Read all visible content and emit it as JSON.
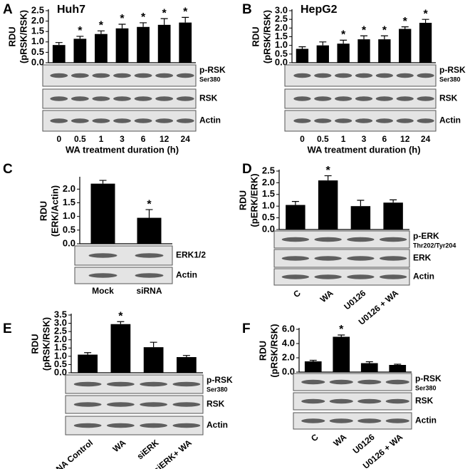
{
  "chart_data": [
    {
      "type": "bar",
      "panel": "A",
      "title": "Huh7",
      "ylabel": [
        "RDU",
        "(pRSK/RSK)"
      ],
      "xlabel": "WA treatment duration (h)",
      "categories": [
        "0",
        "0.5",
        "1",
        "3",
        "6",
        "12",
        "24"
      ],
      "values": [
        0.85,
        1.15,
        1.38,
        1.65,
        1.72,
        1.82,
        1.93
      ],
      "errors": [
        0.12,
        0.12,
        0.15,
        0.2,
        0.2,
        0.3,
        0.25
      ],
      "significance": [
        null,
        "*",
        "*",
        "*",
        "*",
        "*",
        "*"
      ],
      "color": "#000000",
      "ylim": [
        0,
        2.5
      ],
      "yticks": [
        {
          "value": 0,
          "label": "0.0"
        },
        0.5,
        {
          "value": 1,
          "label": "1.0"
        },
        1.5,
        {
          "value": 2,
          "label": "2.0"
        },
        2.5
      ],
      "blots": [
        {
          "label": "p-RSK",
          "sublabel": "Ser380"
        },
        {
          "label": "RSK"
        },
        {
          "label": "Actin"
        }
      ]
    },
    {
      "type": "bar",
      "panel": "B",
      "title": "HepG2",
      "ylabel": [
        "RDU",
        "(pRSK/RSK)"
      ],
      "xlabel": "WA treatment duration (h)",
      "categories": [
        "0",
        "0.5",
        "1",
        "3",
        "6",
        "12",
        "24"
      ],
      "values": [
        0.8,
        1.0,
        1.1,
        1.35,
        1.35,
        1.95,
        2.3
      ],
      "errors": [
        0.12,
        0.2,
        0.2,
        0.2,
        0.2,
        0.12,
        0.2
      ],
      "significance": [
        null,
        null,
        "*",
        "*",
        "*",
        "*",
        "*"
      ],
      "color": "#000000",
      "ylim": [
        0,
        3
      ],
      "yticks": [
        {
          "value": 0,
          "label": "0.0"
        },
        0.5,
        {
          "value": 1,
          "label": "1.0"
        },
        1.5,
        {
          "value": 2,
          "label": "2.0"
        },
        2.5,
        {
          "value": 3,
          "label": "3.0"
        }
      ],
      "blots": [
        {
          "label": "p-RSK",
          "sublabel": "Ser380"
        },
        {
          "label": "RSK"
        },
        {
          "label": "Actin"
        }
      ]
    },
    {
      "type": "bar",
      "panel": "C",
      "ylabel": [
        "RDU",
        "(ERK/Actin)"
      ],
      "categories": [
        "Mock",
        "siRNA"
      ],
      "values": [
        2.2,
        0.95
      ],
      "errors": [
        0.12,
        0.3
      ],
      "significance": [
        null,
        "*"
      ],
      "color": "#000000",
      "ylim": [
        0,
        2.4
      ],
      "yticks": [
        {
          "value": 0,
          "label": "0.0"
        },
        0.5,
        {
          "value": 1,
          "label": "1.0"
        },
        1.5,
        {
          "value": 2,
          "label": "2.0"
        }
      ],
      "blots": [
        {
          "label": "ERK1/2"
        },
        {
          "label": "Actin"
        }
      ]
    },
    {
      "type": "bar",
      "panel": "D",
      "ylabel": [
        "RDU",
        "(pERK/ERK)"
      ],
      "categories": [
        "C",
        "WA",
        "U0126",
        "U0126 + WA"
      ],
      "values": [
        1.05,
        2.1,
        1.0,
        1.15
      ],
      "errors": [
        0.15,
        0.2,
        0.25,
        0.12
      ],
      "significance": [
        null,
        "*",
        null,
        null
      ],
      "color": "#000000",
      "ylim": [
        0,
        2.5
      ],
      "yticks": [
        {
          "value": 0,
          "label": "0.0"
        },
        0.5,
        {
          "value": 1,
          "label": "1.0"
        },
        1.5,
        {
          "value": 2,
          "label": "2.0"
        },
        2.5
      ],
      "blots": [
        {
          "label": "p-ERK",
          "sublabel": "Thr202/Tyr204"
        },
        {
          "label": "ERK"
        },
        {
          "label": "Actin"
        }
      ]
    },
    {
      "type": "bar",
      "panel": "E",
      "ylabel": [
        "RDU",
        "(pRSK/RSK)"
      ],
      "categories": [
        "siRNA Control",
        "WA",
        "siERK",
        "siERK+ WA"
      ],
      "values": [
        1.1,
        2.95,
        1.55,
        0.95
      ],
      "errors": [
        0.12,
        0.15,
        0.3,
        0.1
      ],
      "significance": [
        null,
        "*",
        null,
        null
      ],
      "color": "#000000",
      "ylim": [
        0,
        3.5
      ],
      "yticks": [
        {
          "value": 0,
          "label": "0.0"
        },
        0.5,
        {
          "value": 1,
          "label": "1.0"
        },
        1.5,
        {
          "value": 2,
          "label": "2.0"
        },
        2.5,
        {
          "value": 3,
          "label": "3.0"
        },
        3.5
      ],
      "blots": [
        {
          "label": "p-RSK",
          "sublabel": "Ser380"
        },
        {
          "label": "RSK"
        },
        {
          "label": "Actin"
        }
      ]
    },
    {
      "type": "bar",
      "panel": "F",
      "ylabel": [
        "RDU",
        "(pRSK/RSK)"
      ],
      "categories": [
        "C",
        "WA",
        "U0126",
        "U0126 + WA"
      ],
      "values": [
        1.5,
        4.95,
        1.25,
        1.0
      ],
      "errors": [
        0.15,
        0.25,
        0.2,
        0.1
      ],
      "significance": [
        null,
        "*",
        null,
        null
      ],
      "color": "#000000",
      "ylim": [
        0,
        6
      ],
      "yticks": [
        {
          "value": 0,
          "label": "0.0"
        },
        {
          "value": 2,
          "label": "2.0"
        },
        {
          "value": 4,
          "label": "4.0"
        },
        {
          "value": 6,
          "label": "6.0"
        }
      ],
      "blots": [
        {
          "label": "p-RSK",
          "sublabel": "Ser380"
        },
        {
          "label": "RSK"
        },
        {
          "label": "Actin"
        }
      ]
    }
  ]
}
